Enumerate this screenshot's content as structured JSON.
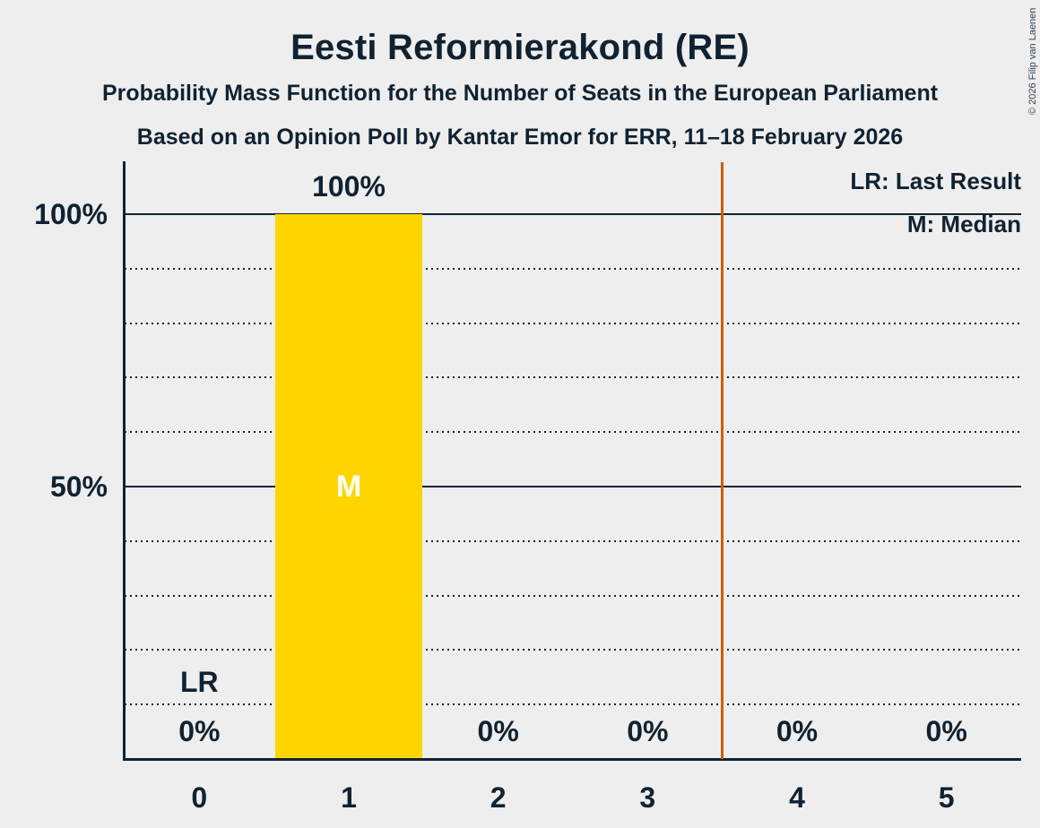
{
  "header": {
    "title": "Eesti Reformierakond (RE)",
    "subtitle1": "Probability Mass Function for the Number of Seats in the European Parliament",
    "subtitle2": "Based on an Opinion Poll by Kantar Emor for ERR, 11–18 February 2026"
  },
  "legend": {
    "last_result": "LR: Last Result",
    "median": "M: Median"
  },
  "copyright": "© 2026 Filip van Laenen",
  "colors": {
    "background": "#EEEEEE",
    "text": "#102232",
    "bar": "#FFD500",
    "vertical_line": "#CE5E0A",
    "median_label": "#FFFFFF"
  },
  "chart_data": {
    "type": "bar",
    "title": "Eesti Reformierakond (RE)",
    "categories": [
      "0",
      "1",
      "2",
      "3",
      "4",
      "5"
    ],
    "values": [
      0,
      100,
      0,
      0,
      0,
      0
    ],
    "bar_labels": [
      "0%",
      "100%",
      "0%",
      "0%",
      "0%",
      "0%"
    ],
    "y_ticks": [
      "100%",
      "50%"
    ],
    "ylim": [
      0,
      100
    ],
    "gridlines": {
      "solid_percent": [
        50,
        100
      ],
      "dotted_percent": [
        10,
        20,
        30,
        40,
        60,
        70,
        80,
        90
      ]
    },
    "annotations": {
      "lr_category": "0",
      "lr_text": "LR",
      "median_category": "1",
      "median_text": "M"
    },
    "vertical_line_x": 3.5,
    "legend_position": "top-right",
    "grid": "horizontal-only"
  }
}
